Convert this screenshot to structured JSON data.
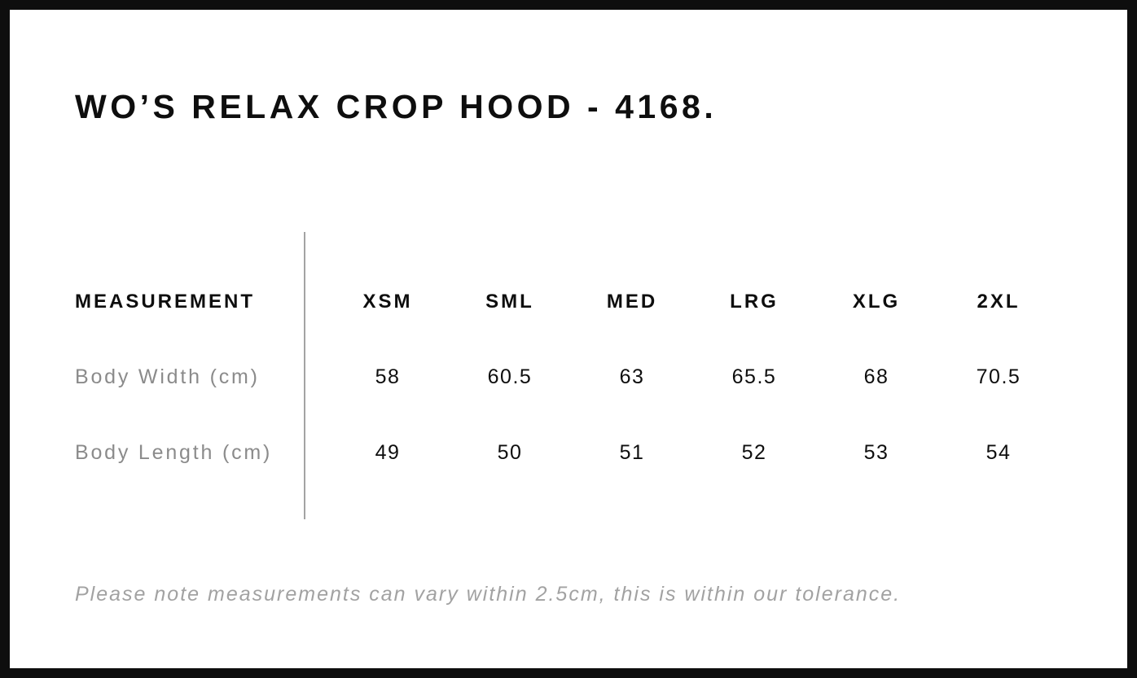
{
  "title": "WO’S RELAX CROP HOOD - 4168.",
  "table": {
    "measurement_header": "MEASUREMENT",
    "size_headers": [
      "XSM",
      "SML",
      "MED",
      "LRG",
      "XLG",
      "2XL"
    ],
    "rows": [
      {
        "label": "Body Width (cm)",
        "values": [
          "58",
          "60.5",
          "63",
          "65.5",
          "68",
          "70.5"
        ]
      },
      {
        "label": "Body Length (cm)",
        "values": [
          "49",
          "50",
          "51",
          "52",
          "53",
          "54"
        ]
      }
    ]
  },
  "note": "Please note measurements can vary within 2.5cm, this is within our tolerance.",
  "colors": {
    "text": "#0e0e0e",
    "label_gray": "#8b8b8b",
    "note_gray": "#a2a2a2",
    "divider_gray": "#a3a3a3",
    "border_color": "#0e0e0e",
    "bg": "#ffffff"
  }
}
